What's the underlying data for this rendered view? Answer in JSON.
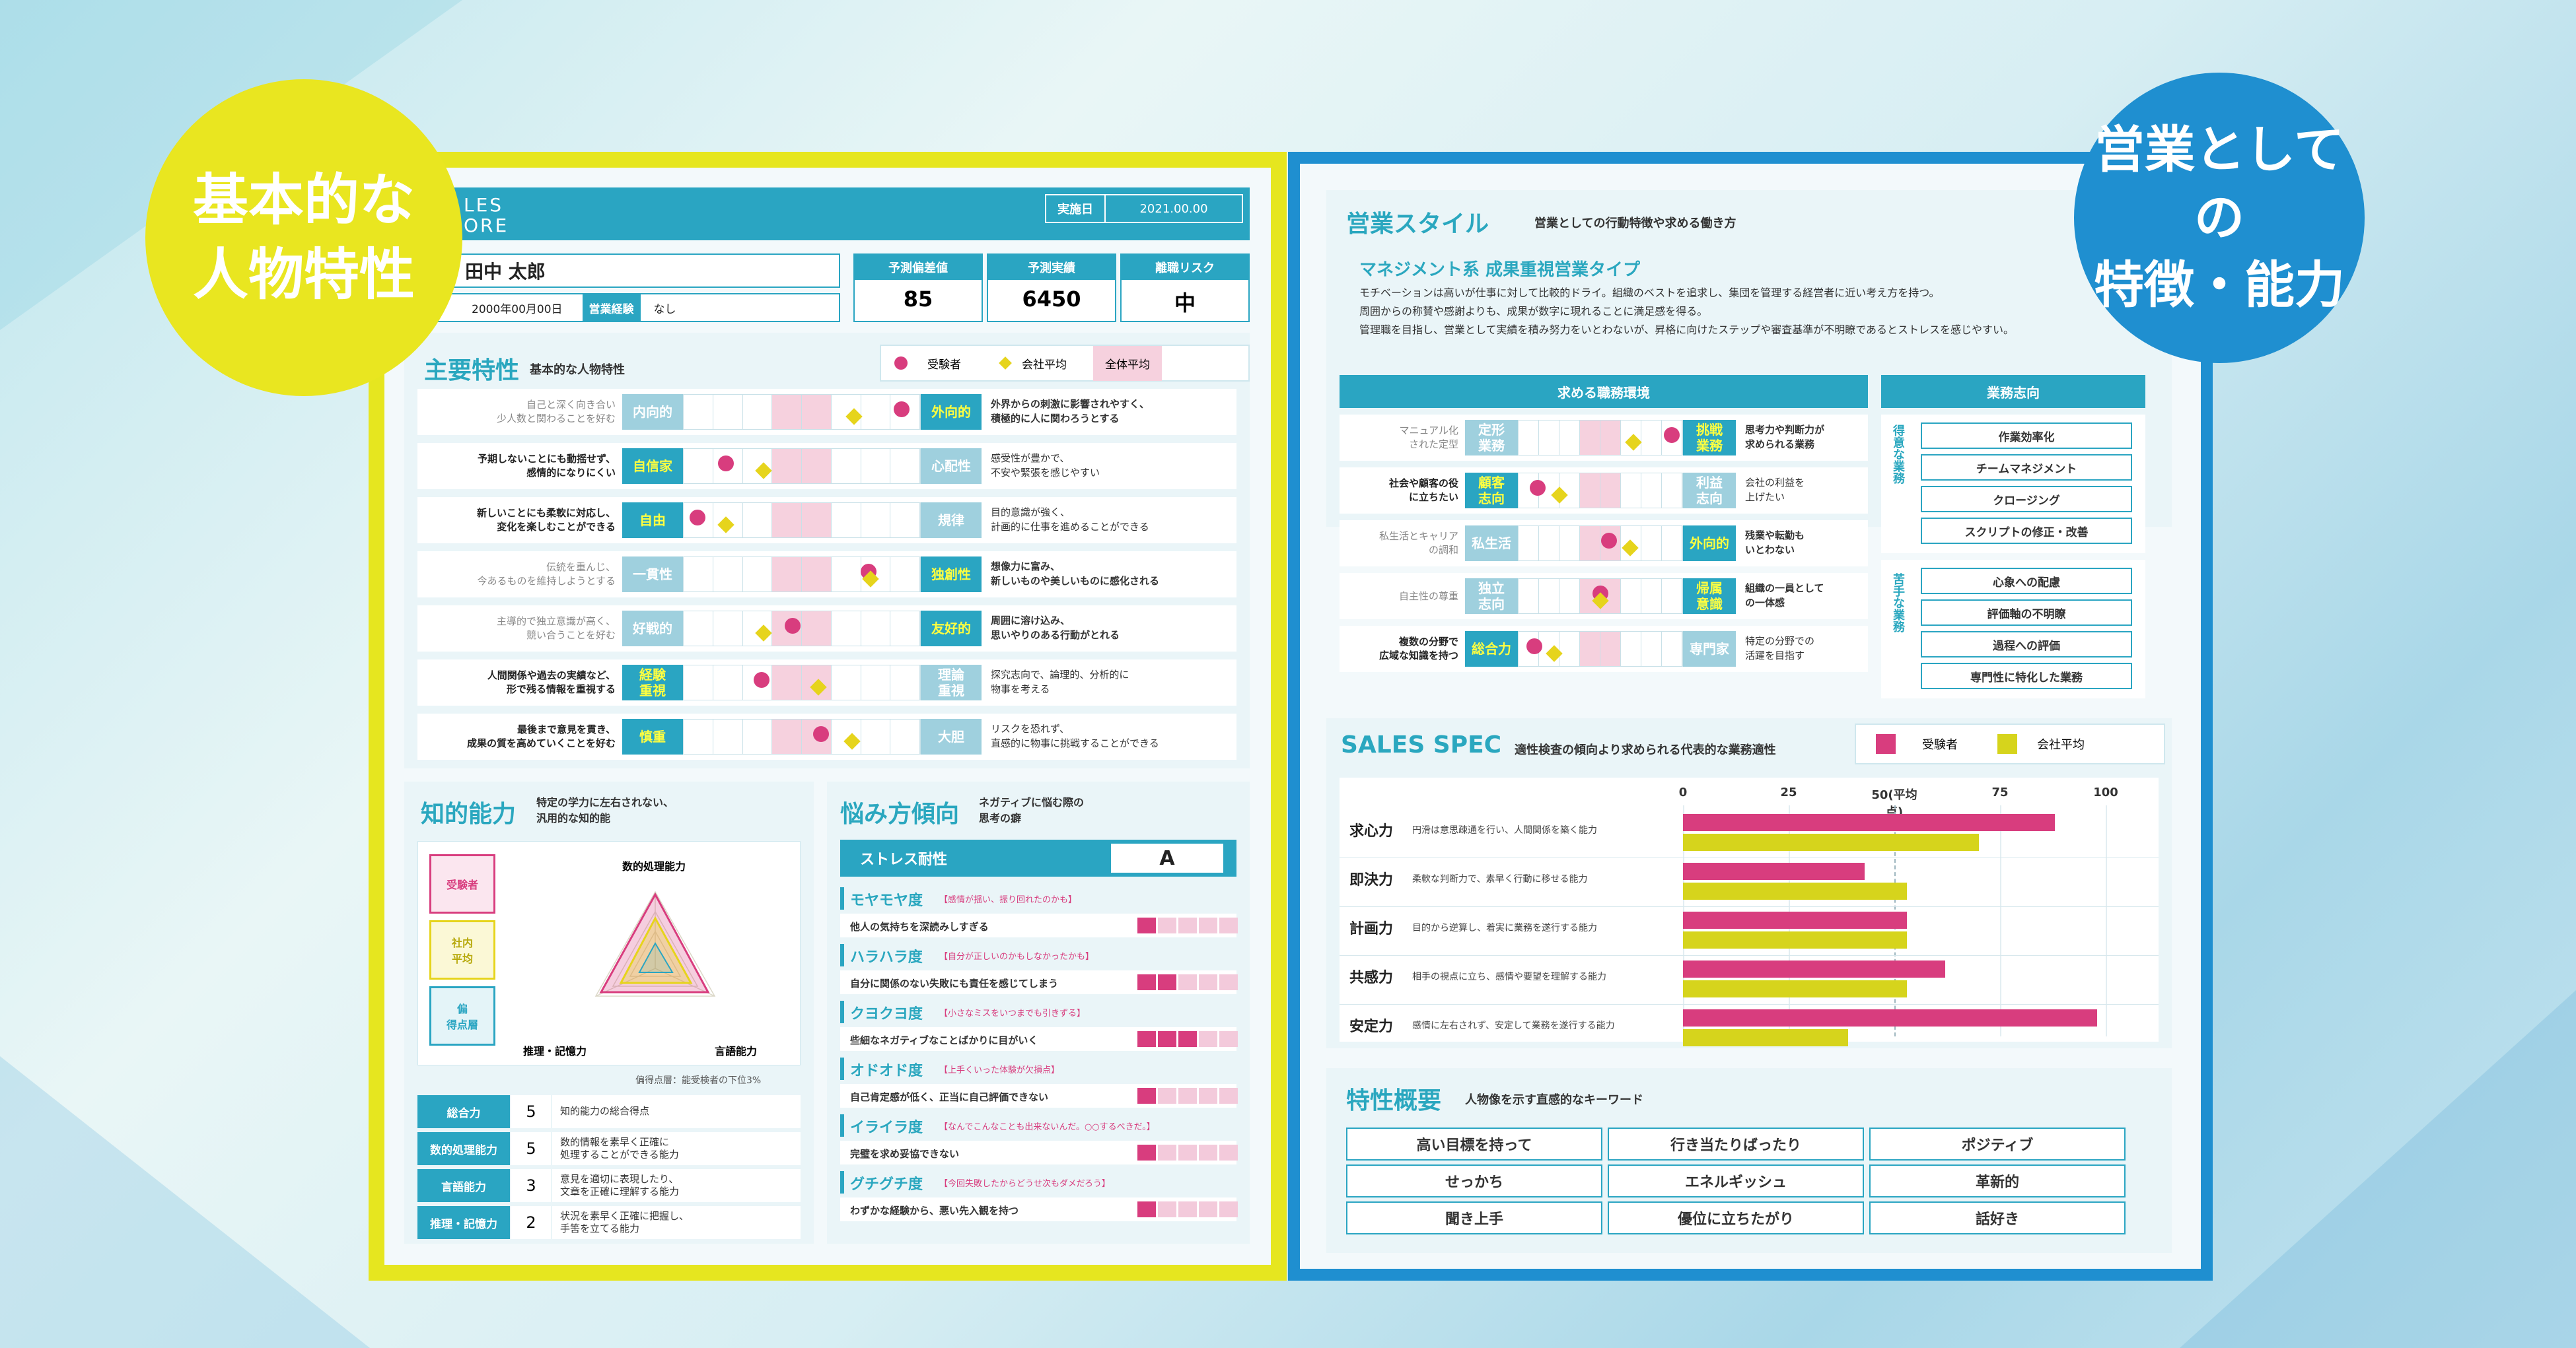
{
  "left_circle": {
    "line1": "基本的な",
    "line2": "人物特性"
  },
  "right_circle": {
    "line1": "営業としての",
    "line2": "特徴・能力"
  },
  "brand": {
    "line1": "LES",
    "line2": "ORE"
  },
  "header": {
    "date_label": "実施日",
    "date_value": "2021.00.00",
    "name": "田中 太郎",
    "birth": "2000年00月00日",
    "exp_label": "営業経験",
    "exp_value": "なし",
    "stats": [
      {
        "label": "予測偏差値",
        "value": "85"
      },
      {
        "label": "予測実績",
        "value": "6450"
      },
      {
        "label": "離職リスク",
        "value": "中"
      }
    ]
  },
  "traits": {
    "title": "主要特性",
    "subtitle": "基本的な人物特性",
    "legend": {
      "a": "受験者",
      "b": "会社平均",
      "c": "全体平均"
    },
    "rows": [
      {
        "left": "自己と深く向き合い\n少人数と関わることを好む",
        "pole_l": "内向的",
        "pole_r": "外向的",
        "active": "r",
        "dot": 0.92,
        "dia": 0.72,
        "desc": "外界からの刺激に影響されやすく、\n積極的に人に関わろうとする"
      },
      {
        "left": "予期しないことにも動揺せず、\n感情的になりにくい",
        "pole_l": "自信家",
        "pole_r": "心配性",
        "active": "l",
        "dot": 0.18,
        "dia": 0.34,
        "desc": "感受性が豊かで、\n不安や緊張を感じやすい"
      },
      {
        "left": "新しいことにも柔軟に対応し、\n変化を楽しむことができる",
        "pole_l": "自由",
        "pole_r": "規律",
        "active": "l",
        "dot": 0.06,
        "dia": 0.18,
        "desc": "目的意識が強く、\n計画的に仕事を進めることができる"
      },
      {
        "left": "伝統を重んじ、\n今あるものを維持しようとする",
        "pole_l": "一貫性",
        "pole_r": "独創性",
        "active": "r",
        "dot": 0.78,
        "dia": 0.79,
        "desc": "想像力に富み、\n新しいものや美しいものに感化される"
      },
      {
        "left": "主導的で独立意識が高く、\n競い合うことを好む",
        "pole_l": "好戦的",
        "pole_r": "友好的",
        "active": "r",
        "dot": 0.46,
        "dia": 0.34,
        "desc": "周囲に溶け込み、\n思いやりのある行動がとれる"
      },
      {
        "left": "人間関係や過去の実績など、\n形で残る情報を重視する",
        "pole_l": "経験\n重視",
        "pole_r": "理論\n重視",
        "active": "l",
        "dot": 0.33,
        "dia": 0.57,
        "desc": "探究志向で、論理的、分析的に\n物事を考える"
      },
      {
        "left": "最後まで意見を貫き、\n成果の質を高めていくことを好む",
        "pole_l": "慎重",
        "pole_r": "大胆",
        "active": "l",
        "dot": 0.58,
        "dia": 0.71,
        "desc": "リスクを恐れず、\n直感的に物事に挑戦することができる"
      }
    ]
  },
  "intel": {
    "title": "知的能力",
    "subtitle": "特定の学力に左右されない、\n汎用的な知的能",
    "legend": [
      "受験者",
      "社内\n平均",
      "偏\n得点層"
    ],
    "axes": [
      "数的処理能力",
      "推理・記憶力",
      "言語能力"
    ],
    "note": "偏得点層：能受検者の下位3%",
    "rows": [
      {
        "label": "総合力",
        "score": "5",
        "desc": "知的能力の総合得点"
      },
      {
        "label": "数的処理能力",
        "score": "5",
        "desc": "数的情報を素早く正確に\n処理することができる能力"
      },
      {
        "label": "言語能力",
        "score": "3",
        "desc": "意見を適切に表現したり、\n文章を正確に理解する能力"
      },
      {
        "label": "推理・記憶力",
        "score": "2",
        "desc": "状況を素早く正確に把握し、\n手筈を立てる能力"
      }
    ]
  },
  "worry": {
    "title": "悩み方傾向",
    "subtitle": "ネガティブに悩む際の\n思考の癖",
    "stress_label": "ストレス耐性",
    "stress_value": "A",
    "rows": [
      {
        "name": "モヤモヤ度",
        "hint": "【感情が揺い、振り回れたのかも】",
        "desc": "他人の気持ちを深読みしすぎる",
        "level": 1
      },
      {
        "name": "ハラハラ度",
        "hint": "【自分が正しいのかもしなかったかも】",
        "desc": "自分に関係のない失敗にも責任を感じてしまう",
        "level": 2
      },
      {
        "name": "クヨクヨ度",
        "hint": "【小さなミスをいつまでも引きずる】",
        "desc": "些細なネガティブなことばかりに目がいく",
        "level": 3
      },
      {
        "name": "オドオド度",
        "hint": "【上手くいった体験が欠損点】",
        "desc": "自己肯定感が低く、正当に自己評価できない",
        "level": 1
      },
      {
        "name": "イライラ度",
        "hint": "【なんでこんなことも出来ないんだ。○○するべきだ。】",
        "desc": "完璧を求め妥協できない",
        "level": 1
      },
      {
        "name": "グチグチ度",
        "hint": "【今回失敗したからどうせ次もダメだろう】",
        "desc": "わずかな経験から、悪い先入観を持つ",
        "level": 1
      }
    ]
  },
  "style": {
    "title": "営業スタイル",
    "subtitle": "営業としての行動特徴や求める働き方",
    "type_name": "マネジメント系 成果重視営業タイプ",
    "desc1": "モチベーションは高いが仕事に対して比較的ドライ。組織のベストを追求し、集団を管理する経営者に近い考え方を持つ。",
    "desc2": "周囲からの称賛や感謝よりも、成果が数字に現れることに満足感を得る。",
    "desc3": "管理職を目指し、営業として実績を積み努力をいとわないが、昇格に向けたステップや審査基準が不明瞭であるとストレスを感じやすい。",
    "env_title": "求める職務環境",
    "biz_title": "業務志向",
    "env_rows": [
      {
        "left": "マニュアル化\nされた定型",
        "pole_l": "定形\n業務",
        "pole_r": "挑戦\n業務",
        "active": "r",
        "dot": 0.93,
        "dia": 0.7,
        "desc": "思考力や判断力が\n求められる業務"
      },
      {
        "left": "社会や顧客の役\nに立ちたい",
        "pole_l": "顧客\n志向",
        "pole_r": "利益\n志向",
        "active": "l",
        "dot": 0.12,
        "dia": 0.25,
        "desc": "会社の利益を\n上げたい"
      },
      {
        "left": "私生活とキャリア\nの調和",
        "pole_l": "私生活",
        "pole_r": "外向的",
        "active": "r",
        "dot": 0.55,
        "dia": 0.68,
        "desc": "残業や転勤も\nいとわない"
      },
      {
        "left": "自主性の尊重",
        "pole_l": "独立\n志向",
        "pole_r": "帰属\n意識",
        "active": "r",
        "dot": 0.5,
        "dia": 0.5,
        "desc": "組織の一員として\nの一体感"
      },
      {
        "left": "複数の分野で\n広域な知識を持つ",
        "pole_l": "総合力",
        "pole_r": "専門家",
        "active": "l",
        "dot": 0.1,
        "dia": 0.22,
        "desc": "特定の分野での\n活躍を目指す"
      }
    ],
    "good_label": "得意な業務",
    "bad_label": "苦手な業務",
    "good": [
      "作業効率化",
      "チームマネジメント",
      "クロージング",
      "スクリプトの修正・改善"
    ],
    "bad": [
      "心象への配慮",
      "評価軸の不明瞭",
      "過程への評価",
      "専門性に特化した業務"
    ]
  },
  "spec": {
    "title": "SALES SPEC",
    "subtitle": "適性検査の傾向より求められる代表的な業務適性",
    "legend": {
      "a": "受験者",
      "b": "会社平均"
    },
    "ticks": [
      "0",
      "25",
      "50(平均点)",
      "75",
      "100"
    ],
    "rows": [
      {
        "name": "求心力",
        "desc": "円滑は意思疎通を行い、人間関係を築く能力",
        "a": 88,
        "b": 70
      },
      {
        "name": "即決力",
        "desc": "柔軟な判断力で、素早く行動に移せる能力",
        "a": 43,
        "b": 53
      },
      {
        "name": "計画力",
        "desc": "目的から逆算し、着実に業務を遂行する能力",
        "a": 53,
        "b": 53
      },
      {
        "name": "共感力",
        "desc": "相手の視点に立ち、感情や要望を理解する能力",
        "a": 62,
        "b": 53
      },
      {
        "name": "安定力",
        "desc": "感情に左右されず、安定して業務を遂行する能力",
        "a": 98,
        "b": 39
      }
    ]
  },
  "overview": {
    "title": "特性概要",
    "subtitle": "人物像を示す直感的なキーワード",
    "keywords": [
      "高い目標を持って",
      "行き当たりばったり",
      "ポジティブ",
      "せっかち",
      "エネルギッシュ",
      "革新的",
      "聞き上手",
      "優位に立ちたがり",
      "話好き"
    ]
  }
}
